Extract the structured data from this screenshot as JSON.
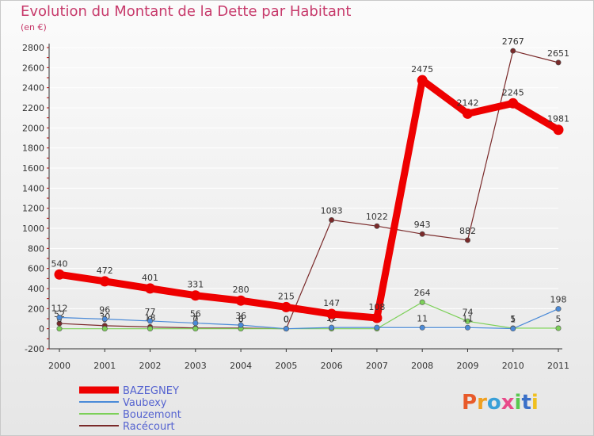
{
  "chart_data": {
    "type": "line",
    "title": "Evolution du Montant de la Dette par Habitant",
    "subtitle": "(en €)",
    "ylim": [
      -200,
      2800
    ],
    "yticks": [
      -200,
      0,
      200,
      400,
      600,
      800,
      1000,
      1200,
      1400,
      1600,
      1800,
      2000,
      2200,
      2400,
      2600,
      2800
    ],
    "x": [
      "2000",
      "2001",
      "2002",
      "2003",
      "2004",
      "2005",
      "2006",
      "2007",
      "2008",
      "2009",
      "2010",
      "2011"
    ],
    "grid": true,
    "legend_position": "bottom-left",
    "series": [
      {
        "name": "BAZEGNEY",
        "color": "#ee0000",
        "values": [
          540,
          472,
          401,
          331,
          280,
          215,
          147,
          108,
          2475,
          2142,
          2245,
          1981
        ]
      },
      {
        "name": "Vaubexy",
        "color": "#4a8ad8",
        "values": [
          112,
          96,
          77,
          56,
          36,
          0,
          12,
          12,
          11,
          11,
          1,
          198
        ]
      },
      {
        "name": "Bouzemont",
        "color": "#7cd058",
        "values": [
          0,
          0,
          0,
          0,
          0,
          0,
          0,
          0,
          264,
          74,
          5,
          5
        ]
      },
      {
        "name": "Racécourt",
        "color": "#7a2a2a",
        "values": [
          52,
          30,
          18,
          7,
          6,
          0,
          1083,
          1022,
          943,
          882,
          2767,
          2651
        ]
      }
    ]
  },
  "logo": {
    "text": "Proxiti"
  }
}
